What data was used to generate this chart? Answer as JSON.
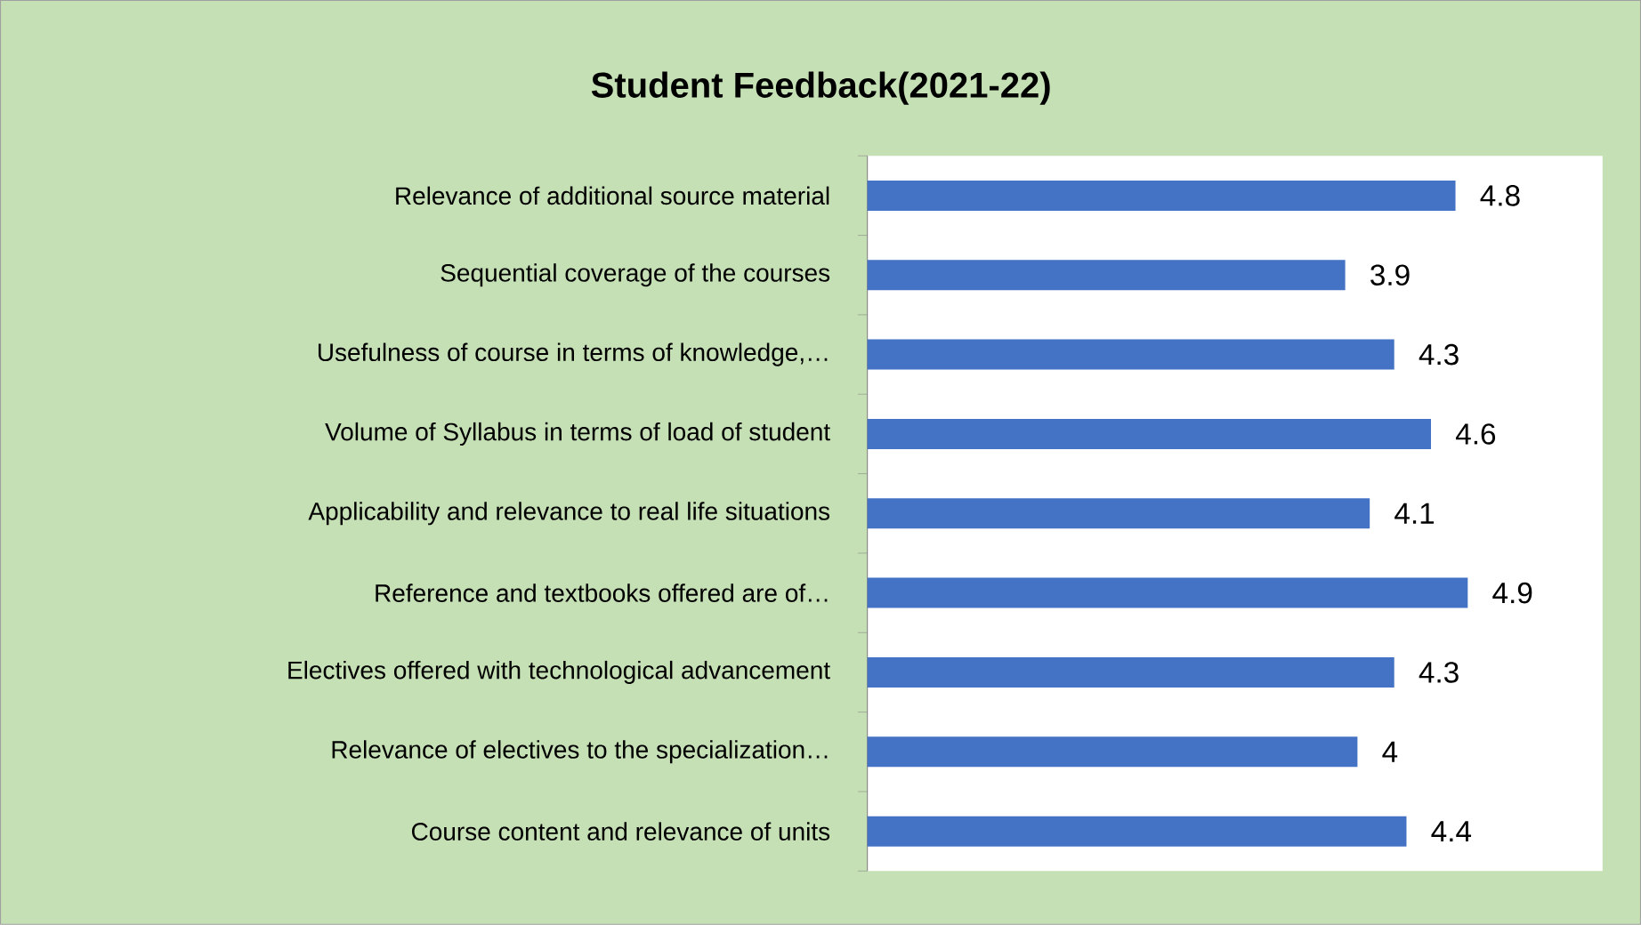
{
  "chart_data": {
    "type": "bar",
    "orientation": "horizontal",
    "title": "Student Feedback(2021-22)",
    "categories": [
      "Relevance of additional source material",
      "Sequential coverage of the courses",
      "Usefulness of course in terms of knowledge,…",
      "Volume of Syllabus in terms of load of student",
      "Applicability and relevance to real life situations",
      "Reference and textbooks offered are of…",
      "Electives offered with technological advancement",
      "Relevance of electives to the specialization…",
      "Course content and relevance of units"
    ],
    "values": [
      4.8,
      3.9,
      4.3,
      4.6,
      4.1,
      4.9,
      4.3,
      4,
      4.4
    ],
    "color": "#4472c4",
    "xlim": [
      0,
      6
    ],
    "data_labels": true
  }
}
